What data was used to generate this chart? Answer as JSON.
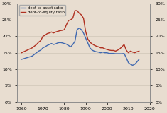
{
  "xlim": [
    1958,
    2020
  ],
  "ylim": [
    0.0,
    0.3
  ],
  "yticks": [
    0.0,
    0.05,
    0.1,
    0.15,
    0.2,
    0.25,
    0.3
  ],
  "ytick_labels": [
    "0%",
    "5%",
    "10%",
    "15%",
    "20%",
    "25%",
    "30%"
  ],
  "xticks": [
    1960,
    1970,
    1980,
    1990,
    2000,
    2010,
    2020
  ],
  "background_color": "#e8ddd0",
  "line1_color": "#4169b0",
  "line2_color": "#b03020",
  "line1_label": "debt-to-asset ratio",
  "line2_label": "debt-to-equity ratio",
  "debt_asset": {
    "years": [
      1960,
      1961,
      1962,
      1963,
      1964,
      1965,
      1966,
      1967,
      1968,
      1969,
      1970,
      1971,
      1972,
      1973,
      1974,
      1975,
      1976,
      1977,
      1978,
      1979,
      1980,
      1981,
      1982,
      1983,
      1984,
      1985,
      1986,
      1987,
      1988,
      1989,
      1990,
      1991,
      1992,
      1993,
      1994,
      1995,
      1996,
      1997,
      1998,
      1999,
      2000,
      2001,
      2002,
      2003,
      2004,
      2005,
      2006,
      2007,
      2008,
      2009,
      2010,
      2011,
      2012,
      2013,
      2014,
      2015
    ],
    "values": [
      0.13,
      0.132,
      0.134,
      0.136,
      0.138,
      0.14,
      0.145,
      0.15,
      0.155,
      0.158,
      0.165,
      0.168,
      0.172,
      0.175,
      0.178,
      0.175,
      0.177,
      0.18,
      0.181,
      0.18,
      0.178,
      0.176,
      0.172,
      0.168,
      0.175,
      0.185,
      0.22,
      0.225,
      0.22,
      0.21,
      0.195,
      0.18,
      0.165,
      0.158,
      0.155,
      0.153,
      0.152,
      0.15,
      0.152,
      0.15,
      0.15,
      0.148,
      0.148,
      0.148,
      0.147,
      0.147,
      0.147,
      0.147,
      0.148,
      0.135,
      0.12,
      0.115,
      0.112,
      0.115,
      0.122,
      0.13
    ]
  },
  "debt_equity": {
    "years": [
      1960,
      1961,
      1962,
      1963,
      1964,
      1965,
      1966,
      1967,
      1968,
      1969,
      1970,
      1971,
      1972,
      1973,
      1974,
      1975,
      1976,
      1977,
      1978,
      1979,
      1980,
      1981,
      1982,
      1983,
      1984,
      1985,
      1986,
      1987,
      1988,
      1989,
      1990,
      1991,
      1992,
      1993,
      1994,
      1995,
      1996,
      1997,
      1998,
      1999,
      2000,
      2001,
      2002,
      2003,
      2004,
      2005,
      2006,
      2007,
      2008,
      2009,
      2010,
      2011,
      2012,
      2013,
      2014,
      2015
    ],
    "values": [
      0.15,
      0.153,
      0.156,
      0.159,
      0.162,
      0.165,
      0.17,
      0.175,
      0.182,
      0.187,
      0.2,
      0.203,
      0.208,
      0.21,
      0.213,
      0.21,
      0.213,
      0.215,
      0.217,
      0.218,
      0.22,
      0.235,
      0.248,
      0.25,
      0.255,
      0.278,
      0.278,
      0.27,
      0.265,
      0.255,
      0.215,
      0.192,
      0.182,
      0.177,
      0.173,
      0.17,
      0.168,
      0.165,
      0.165,
      0.162,
      0.16,
      0.158,
      0.157,
      0.157,
      0.155,
      0.158,
      0.162,
      0.168,
      0.175,
      0.158,
      0.15,
      0.155,
      0.152,
      0.15,
      0.153,
      0.155
    ]
  }
}
